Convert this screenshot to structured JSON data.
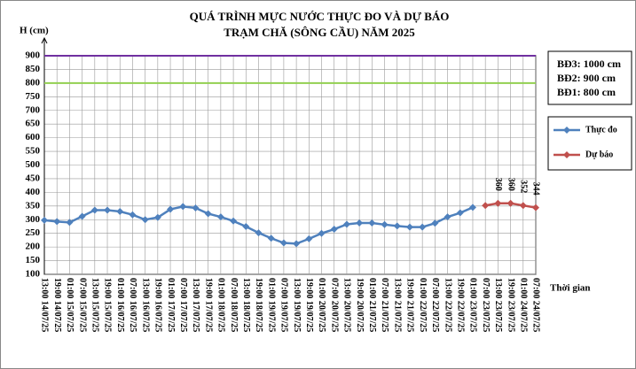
{
  "chart_data": {
    "type": "line",
    "title": "QUÁ TRÌNH MỰC NƯỚC THỰC ĐO VÀ DỰ BÁO",
    "subtitle": "TRẠM CHĂ (SÔNG CẦU) NĂM 2025",
    "y_label": "H (cm)",
    "x_label": "Thời gian",
    "categories": [
      "13:00 14/07/25",
      "19:00 14/07/25",
      "01:00 15/07/25",
      "07:00 15/07/25",
      "13:00 15/07/25",
      "19:00 15/07/25",
      "01:00 16/07/25",
      "07:00 16/07/25",
      "13:00 16/07/25",
      "19:00 16/07/25",
      "01:00 17/07/25",
      "07:00 17/07/25",
      "13:00 17/07/25",
      "19:00 17/07/25",
      "01:00 18/07/25",
      "07:00 18/07/25",
      "13:00 18/07/25",
      "19:00 18/07/25",
      "01:00 19/07/25",
      "07:00 19/07/25",
      "13:00 19/07/25",
      "19:00 19/07/25",
      "01:00 20/07/25",
      "07:00 20/07/25",
      "13:00 20/07/25",
      "19:00 20/07/25",
      "01:00 21/07/25",
      "07:00 21/07/25",
      "13:00 21/07/25",
      "19:00 21/07/25",
      "01:00 22/07/25",
      "07:00 22/07/25",
      "13:00 22/07/25",
      "19:00 22/07/25",
      "01:00 23/07/25",
      "07:00 23/07/25",
      "13:00 23/07/25",
      "19:00 23/07/25",
      "01:00 24/07/25",
      "07:00 24/07/25"
    ],
    "series": [
      {
        "name": "Thực đo",
        "color": "#4f81bd",
        "values": [
          298,
          293,
          290,
          312,
          335,
          335,
          330,
          318,
          300,
          308,
          338,
          348,
          343,
          322,
          310,
          295,
          275,
          252,
          232,
          215,
          212,
          230,
          250,
          265,
          283,
          288,
          288,
          282,
          277,
          273,
          273,
          287,
          310,
          325,
          345,
          null,
          null,
          null,
          null,
          null
        ]
      },
      {
        "name": "Dự báo",
        "color": "#c0504d",
        "values": [
          null,
          null,
          null,
          null,
          null,
          null,
          null,
          null,
          null,
          null,
          null,
          null,
          null,
          null,
          null,
          null,
          null,
          null,
          null,
          null,
          null,
          null,
          null,
          null,
          null,
          null,
          null,
          null,
          null,
          null,
          null,
          null,
          null,
          null,
          null,
          352,
          360,
          360,
          352,
          344
        ],
        "value_labels": [
          null,
          null,
          null,
          null,
          null,
          null,
          null,
          null,
          null,
          null,
          null,
          null,
          null,
          null,
          null,
          null,
          null,
          null,
          null,
          null,
          null,
          null,
          null,
          null,
          null,
          null,
          null,
          null,
          null,
          null,
          null,
          null,
          null,
          null,
          null,
          null,
          "360",
          "360",
          "352",
          "344"
        ]
      }
    ],
    "ylim": [
      100,
      900
    ],
    "yticks": [
      100,
      150,
      200,
      250,
      300,
      350,
      400,
      450,
      500,
      550,
      600,
      650,
      700,
      750,
      800,
      850,
      900
    ],
    "grid": true,
    "alert_lines": [
      {
        "value": 900,
        "color": "#7030a0"
      },
      {
        "value": 800,
        "color": "#92d050"
      }
    ],
    "alert_box": [
      "BĐ3: 1000 cm",
      "BĐ2: 900 cm",
      "BĐ1: 800 cm"
    ]
  }
}
